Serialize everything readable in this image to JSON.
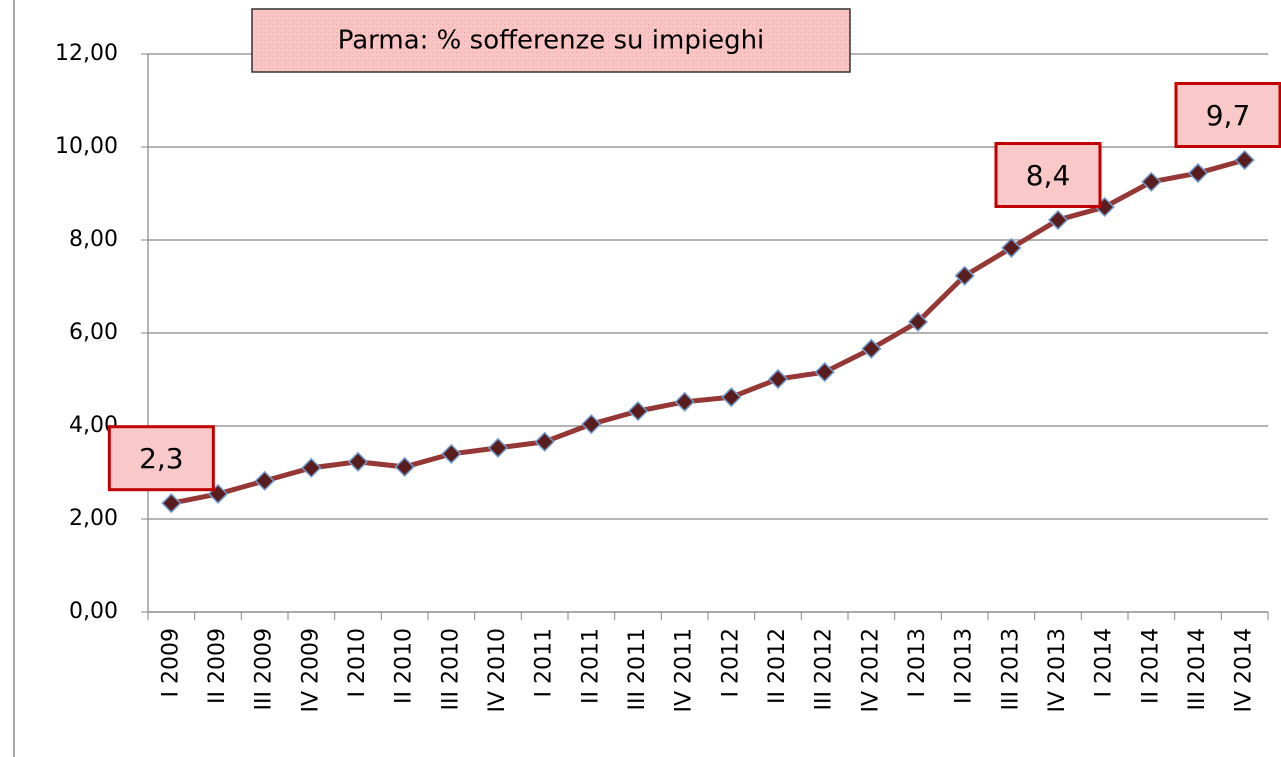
{
  "chart_data": {
    "type": "line",
    "title": "Parma: % sofferenze su impieghi",
    "categories": [
      "I 2009",
      "II 2009",
      "III 2009",
      "IV 2009",
      "I 2010",
      "II 2010",
      "III 2010",
      "IV 2010",
      "I 2011",
      "II 2011",
      "III 2011",
      "IV 2011",
      "I 2012",
      "II 2012",
      "III 2012",
      "IV 2012",
      "I 2013",
      "II 2013",
      "III 2013",
      "IV 2013",
      "I 2014",
      "II 2014",
      "III 2014",
      "IV 2014"
    ],
    "series": [
      {
        "name": "Parma",
        "color": "#953735",
        "values": [
          2.34,
          2.54,
          2.82,
          3.1,
          3.23,
          3.12,
          3.4,
          3.53,
          3.66,
          4.04,
          4.32,
          4.52,
          4.62,
          5.01,
          5.16,
          5.66,
          6.24,
          7.23,
          7.83,
          8.43,
          8.71,
          9.25,
          9.44,
          9.72
        ],
        "value_labels": [
          "2,3",
          null,
          null,
          null,
          null,
          null,
          null,
          null,
          null,
          null,
          null,
          null,
          null,
          null,
          null,
          null,
          null,
          null,
          null,
          "8,4",
          null,
          null,
          null,
          "9,7"
        ]
      }
    ],
    "ylim": [
      0,
      12
    ],
    "yticks": [
      {
        "value": 0,
        "label": "0,00"
      },
      {
        "value": 2,
        "label": "2,00"
      },
      {
        "value": 4,
        "label": "4,00"
      },
      {
        "value": 6,
        "label": "6,00"
      },
      {
        "value": 8,
        "label": "8,00"
      },
      {
        "value": 10,
        "label": "10,00"
      },
      {
        "value": 12,
        "label": "12,00"
      }
    ],
    "grid": true
  }
}
